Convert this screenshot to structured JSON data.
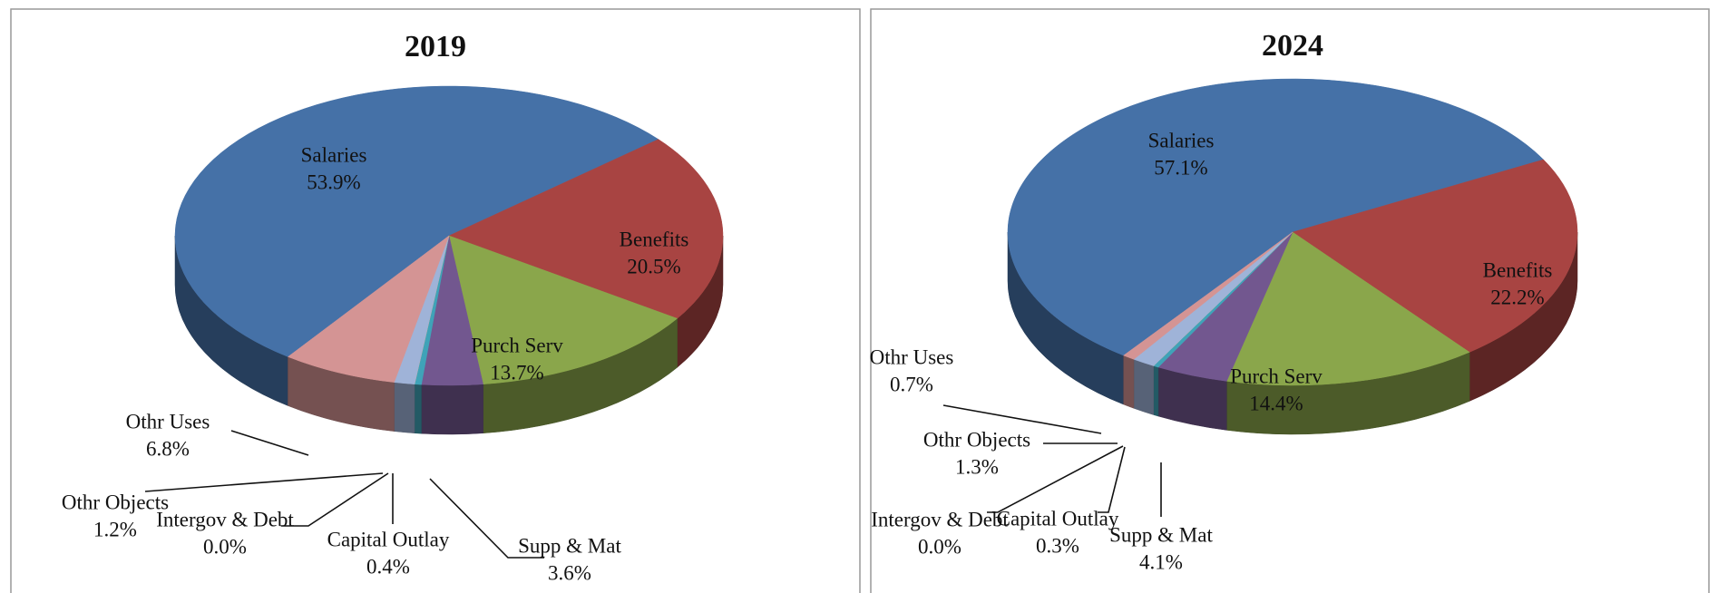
{
  "chart_data": [
    {
      "type": "pie",
      "title": "2019",
      "categories": [
        "Salaries",
        "Benefits",
        "Purch Serv",
        "Supp & Mat",
        "Capital Outlay",
        "Intergov & Debt",
        "Othr Objects",
        "Othr Uses"
      ],
      "values": [
        53.9,
        20.5,
        13.7,
        3.6,
        0.4,
        0.0,
        1.2,
        6.8
      ],
      "value_labels": [
        "53.9%",
        "20.5%",
        "13.7%",
        "3.6%",
        "0.4%",
        "0.0%",
        "1.2%",
        "6.8%"
      ],
      "colors": [
        "#4571a7",
        "#a84442",
        "#8aa64b",
        "#72578f",
        "#3fa3b8",
        "#f09a4a",
        "#9fb3d8",
        "#d49494"
      ]
    },
    {
      "type": "pie",
      "title": "2024",
      "categories": [
        "Salaries",
        "Benefits",
        "Purch Serv",
        "Supp & Mat",
        "Capital Outlay",
        "Intergov & Debt",
        "Othr Objects",
        "Othr Uses"
      ],
      "values": [
        57.1,
        22.2,
        14.4,
        4.1,
        0.3,
        0.0,
        1.3,
        0.7
      ],
      "value_labels": [
        "57.1%",
        "22.2%",
        "14.4%",
        "4.1%",
        "0.3%",
        "0.0%",
        "1.3%",
        "0.7%"
      ],
      "colors": [
        "#4571a7",
        "#a84442",
        "#8aa64b",
        "#72578f",
        "#3fa3b8",
        "#f09a4a",
        "#9fb3d8",
        "#d49494"
      ]
    }
  ]
}
